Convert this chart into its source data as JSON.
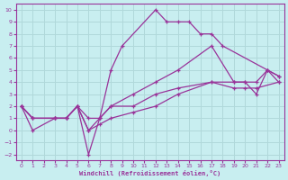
{
  "xlabel": "Windchill (Refroidissement éolien,°C)",
  "background_color": "#c8eef0",
  "grid_color": "#b0d8da",
  "line_color": "#993399",
  "xlim": [
    -0.5,
    23.5
  ],
  "ylim": [
    -2.5,
    10.5
  ],
  "xticks": [
    0,
    1,
    2,
    3,
    4,
    5,
    6,
    7,
    8,
    9,
    10,
    11,
    12,
    13,
    14,
    15,
    16,
    17,
    18,
    19,
    20,
    21,
    22,
    23
  ],
  "yticks": [
    -2,
    -1,
    0,
    1,
    2,
    3,
    4,
    5,
    6,
    7,
    8,
    9,
    10
  ],
  "line1_x": [
    0,
    1,
    3,
    4,
    5,
    6,
    7,
    8,
    9,
    12,
    13,
    14,
    15,
    16,
    17,
    18,
    22,
    23
  ],
  "line1_y": [
    2,
    0,
    1,
    1,
    2,
    -2,
    1,
    5,
    7,
    10,
    9,
    9,
    9,
    8,
    8,
    7,
    5,
    4
  ],
  "line2_x": [
    0,
    1,
    3,
    4,
    5,
    6,
    7,
    8,
    10,
    12,
    14,
    17,
    19,
    20,
    21,
    22,
    23
  ],
  "line2_y": [
    2,
    1,
    1,
    1,
    2,
    1,
    1,
    2,
    3,
    4,
    5,
    7,
    4,
    4,
    4,
    5,
    4.5
  ],
  "line3_x": [
    0,
    1,
    3,
    4,
    5,
    6,
    7,
    8,
    10,
    12,
    14,
    17,
    19,
    20,
    21,
    22,
    23
  ],
  "line3_y": [
    2,
    1,
    1,
    1,
    2,
    0,
    1,
    2,
    2,
    3,
    3.5,
    4,
    4,
    4,
    3,
    5,
    4.5
  ],
  "line4_x": [
    0,
    1,
    3,
    4,
    5,
    6,
    7,
    8,
    10,
    12,
    14,
    17,
    19,
    20,
    21,
    23
  ],
  "line4_y": [
    2,
    1,
    1,
    1,
    2,
    0,
    0.5,
    1,
    1.5,
    2,
    3,
    4,
    3.5,
    3.5,
    3.5,
    4
  ]
}
